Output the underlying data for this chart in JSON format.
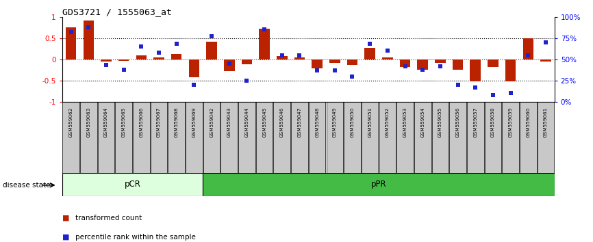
{
  "title": "GDS3721 / 1555063_at",
  "samples": [
    "GSM559062",
    "GSM559063",
    "GSM559064",
    "GSM559065",
    "GSM559066",
    "GSM559067",
    "GSM559068",
    "GSM559069",
    "GSM559042",
    "GSM559043",
    "GSM559044",
    "GSM559045",
    "GSM559046",
    "GSM559047",
    "GSM559048",
    "GSM559049",
    "GSM559050",
    "GSM559051",
    "GSM559052",
    "GSM559053",
    "GSM559054",
    "GSM559055",
    "GSM559056",
    "GSM559057",
    "GSM559058",
    "GSM559059",
    "GSM559060",
    "GSM559061"
  ],
  "transformed_count": [
    0.75,
    0.92,
    -0.05,
    -0.03,
    0.1,
    0.05,
    0.12,
    -0.42,
    0.42,
    -0.28,
    -0.12,
    0.72,
    0.07,
    0.05,
    -0.22,
    -0.08,
    -0.13,
    0.27,
    0.05,
    -0.18,
    -0.25,
    -0.08,
    -0.25,
    -0.52,
    -0.18,
    -0.52,
    0.5,
    -0.05
  ],
  "percentile_rank": [
    82,
    88,
    43,
    38,
    65,
    58,
    68,
    20,
    77,
    45,
    25,
    85,
    55,
    55,
    37,
    37,
    30,
    68,
    60,
    42,
    38,
    42,
    20,
    17,
    8,
    10,
    55,
    70
  ],
  "pcr_count": 8,
  "ppr_count": 20,
  "bar_color": "#bb2200",
  "dot_color": "#2222cc",
  "pcr_color": "#ddffdd",
  "ppr_color": "#44bb44",
  "ylim_left": [
    -1,
    1
  ],
  "ylim_right": [
    0,
    100
  ],
  "right_yticks": [
    0,
    25,
    50,
    75,
    100
  ],
  "right_yticklabels": [
    "0%",
    "25%",
    "50%",
    "75%",
    "100%"
  ],
  "left_yticks": [
    -1,
    -0.5,
    0,
    0.5,
    1
  ],
  "left_yticklabels": [
    "-1",
    "-0.5",
    "0",
    "0.5",
    "1"
  ],
  "hlines_dotted": [
    0.5,
    -0.5
  ],
  "hline_zero_color": "#cc0000",
  "bg_color": "white"
}
